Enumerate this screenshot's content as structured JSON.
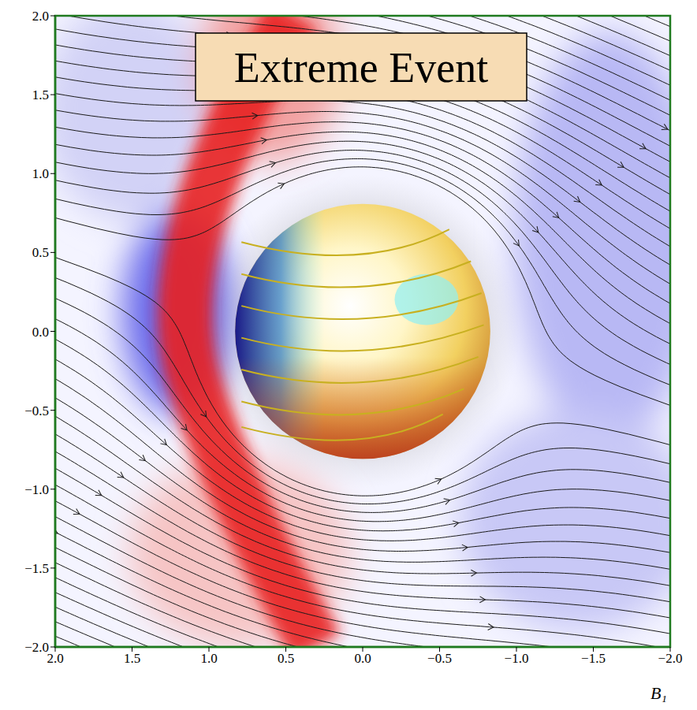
{
  "chart_data": {
    "type": "streamline",
    "title": "Extreme Event",
    "x_label": "B₁",
    "xlim": [
      2,
      -2
    ],
    "ylim": [
      -2,
      2
    ],
    "xticks": [
      {
        "value": 2,
        "label": "2.0"
      },
      1.5,
      {
        "value": 1,
        "label": "1.0"
      },
      0.5,
      {
        "value": 0,
        "label": "0.0"
      },
      {
        "value": -0.5,
        "label": "−0.5"
      },
      {
        "value": -1,
        "label": "−1.0"
      },
      {
        "value": -1.5,
        "label": "−1.5"
      },
      {
        "value": -2,
        "label": "−2.0"
      }
    ],
    "yticks": [
      {
        "value": -2,
        "label": "−2.0"
      },
      {
        "value": -1.5,
        "label": "−1.5"
      },
      {
        "value": -1,
        "label": "−1.0"
      },
      {
        "value": -0.5,
        "label": "−0.5"
      },
      {
        "value": 0,
        "label": "0.0"
      },
      0.5,
      {
        "value": 1,
        "label": "1.0"
      },
      1.5,
      {
        "value": 2,
        "label": "2.0"
      }
    ]
  }
}
